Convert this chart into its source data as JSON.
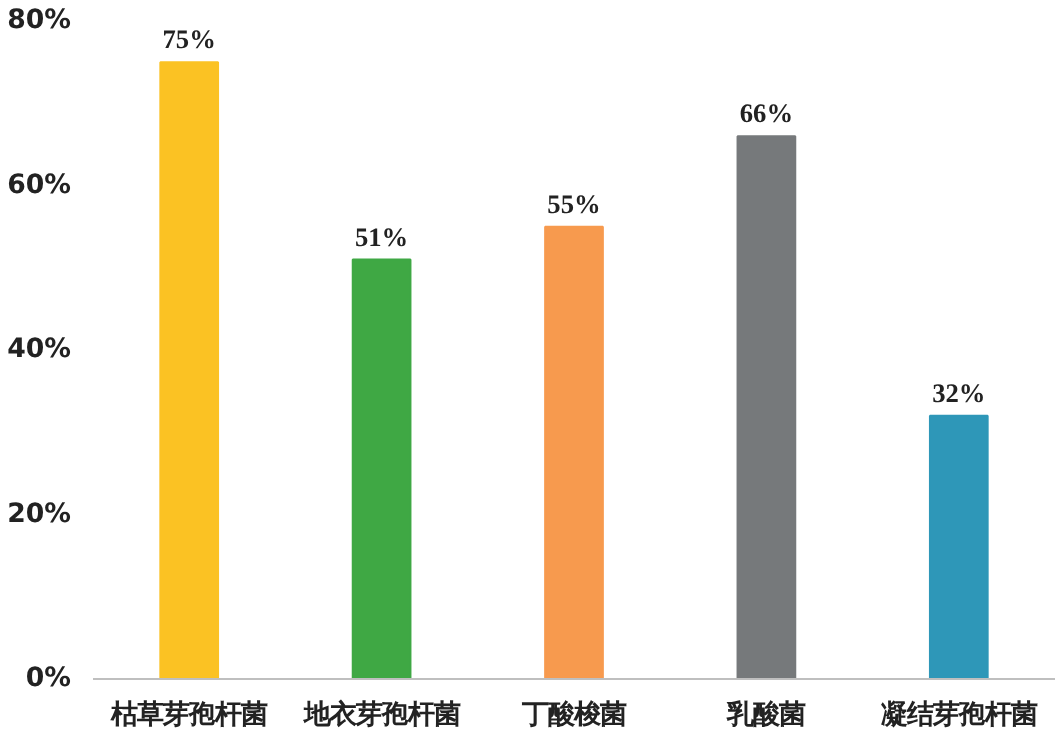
{
  "chart_data": {
    "type": "bar",
    "categories": [
      "枯草芽孢杆菌",
      "地衣芽孢杆菌",
      "丁酸梭菌",
      "乳酸菌",
      "凝结芽孢杆菌"
    ],
    "values": [
      75,
      51,
      55,
      66,
      32
    ],
    "colors": [
      "#fbc223",
      "#3fa844",
      "#f79a4e",
      "#76797b",
      "#2e97b8"
    ],
    "value_labels": [
      "75%",
      "51%",
      "55%",
      "66%",
      "32%"
    ],
    "ylim": [
      0,
      80
    ],
    "yticks": [
      {
        "value": 0,
        "label": "0%"
      },
      {
        "value": 20,
        "label": "20%"
      },
      {
        "value": 40,
        "label": "40%"
      },
      {
        "value": 60,
        "label": "60%"
      },
      {
        "value": 80,
        "label": "80%"
      }
    ],
    "grid": false
  }
}
